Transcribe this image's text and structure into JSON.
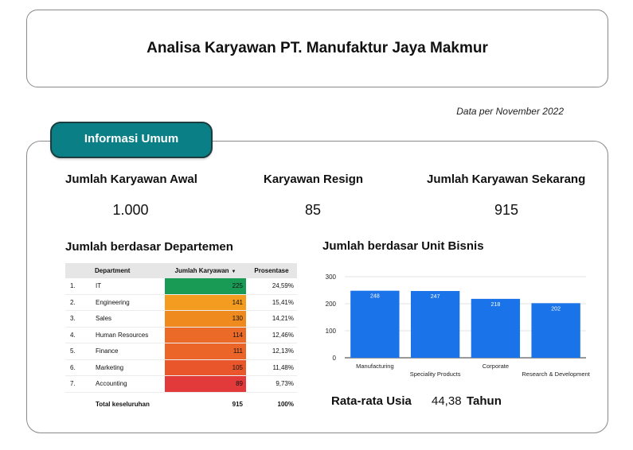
{
  "header": {
    "title": "Analisa Karyawan PT. Manufaktur Jaya Makmur"
  },
  "date_note": "Data per November 2022",
  "tab": {
    "label": "Informasi Umum",
    "color": "#0a7f86"
  },
  "kpis": [
    {
      "label": "Jumlah Karyawan Awal",
      "value": "1.000"
    },
    {
      "label": "Karyawan Resign",
      "value": "85"
    },
    {
      "label": "Jumlah Karyawan Sekarang",
      "value": "915"
    }
  ],
  "dept_section": {
    "title": "Jumlah berdasar Departemen",
    "columns": [
      "Department",
      "Jumlah Karyawan",
      "Prosentase"
    ],
    "rows": [
      {
        "no": "1.",
        "dept": "IT",
        "count": "225",
        "pct": "24,59%",
        "color": "#1a9b55"
      },
      {
        "no": "2.",
        "dept": "Engineering",
        "count": "141",
        "pct": "15,41%",
        "color": "#f39c1f"
      },
      {
        "no": "3.",
        "dept": "Sales",
        "count": "130",
        "pct": "14,21%",
        "color": "#ef8a1e"
      },
      {
        "no": "4.",
        "dept": "Human Resources",
        "count": "114",
        "pct": "12,46%",
        "color": "#ec6a27"
      },
      {
        "no": "5.",
        "dept": "Finance",
        "count": "111",
        "pct": "12,13%",
        "color": "#eb6428"
      },
      {
        "no": "6.",
        "dept": "Marketing",
        "count": "105",
        "pct": "11,48%",
        "color": "#e9562b"
      },
      {
        "no": "7.",
        "dept": "Accounting",
        "count": "89",
        "pct": "9,73%",
        "color": "#e23a3a"
      }
    ],
    "total": {
      "label": "Total keseluruhan",
      "count": "915",
      "pct": "100%"
    }
  },
  "unit_section": {
    "title": "Jumlah berdasar Unit Bisnis"
  },
  "chart_data": {
    "type": "bar",
    "categories": [
      "Manufacturing",
      "Speciality Products",
      "Corporate",
      "Research & Development"
    ],
    "values": [
      248,
      247,
      218,
      202
    ],
    "ylim": [
      0,
      300
    ],
    "yticks": [
      0,
      100,
      200,
      300
    ],
    "grid": true,
    "bar_color": "#1a73e8"
  },
  "age": {
    "label": "Rata-rata Usia",
    "value": "44,38",
    "unit": "Tahun"
  }
}
